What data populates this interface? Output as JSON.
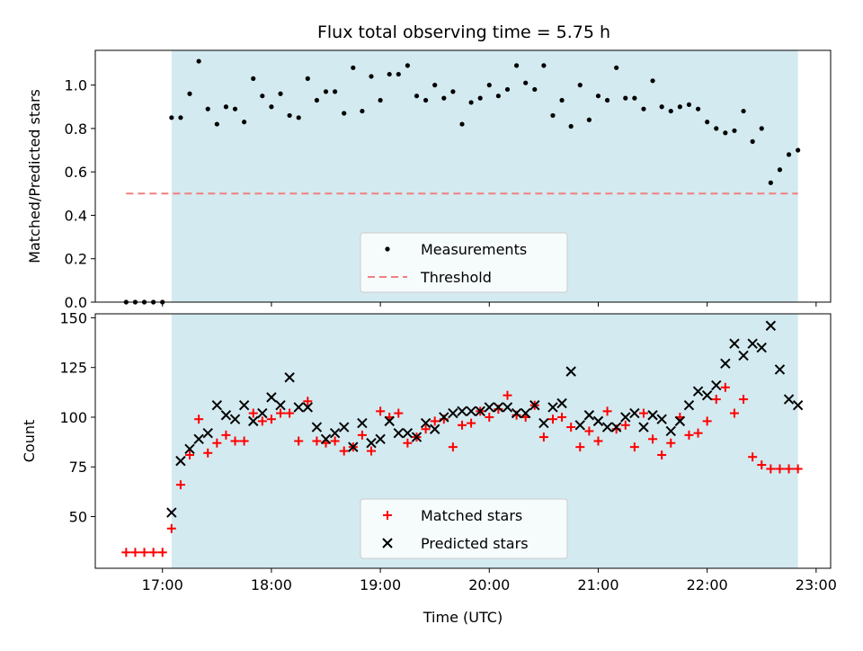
{
  "title": "Flux total observing time = 5.75 h",
  "chart_data": [
    {
      "type": "scatter",
      "panel": "top",
      "ylabel": "Matched/Predicted stars",
      "xlabel": "",
      "ylim": [
        0,
        1.16
      ],
      "yticks": [
        "0.0",
        "0.2",
        "0.4",
        "0.6",
        "0.8",
        "1.0"
      ],
      "ytick_values": [
        0,
        0.2,
        0.4,
        0.6,
        0.8,
        1.0
      ],
      "xlim": [
        "16:23",
        "23:08"
      ],
      "xticks": [
        "17:00",
        "18:00",
        "19:00",
        "20:00",
        "21:00",
        "22:00",
        "23:00"
      ],
      "observing_window": {
        "start": "17:05",
        "end": "22:50",
        "color": "#d3eaf0"
      },
      "threshold": {
        "name": "Threshold",
        "value": 0.5,
        "x_start": "16:40",
        "x_end": "22:50",
        "color": "#f08080",
        "style": "dashed"
      },
      "legend": {
        "placement": "lower center",
        "entries": [
          "Measurements",
          "Threshold"
        ]
      },
      "series": [
        {
          "name": "Measurements",
          "color": "#000000",
          "marker": "dot",
          "x": [
            "16:40",
            "16:45",
            "16:50",
            "16:55",
            "17:00",
            "17:05",
            "17:10",
            "17:15",
            "17:20",
            "17:25",
            "17:30",
            "17:35",
            "17:40",
            "17:45",
            "17:50",
            "17:55",
            "18:00",
            "18:05",
            "18:10",
            "18:15",
            "18:20",
            "18:25",
            "18:30",
            "18:35",
            "18:40",
            "18:45",
            "18:50",
            "18:55",
            "19:00",
            "19:05",
            "19:10",
            "19:15",
            "19:20",
            "19:25",
            "19:30",
            "19:35",
            "19:40",
            "19:45",
            "19:50",
            "19:55",
            "20:00",
            "20:05",
            "20:10",
            "20:15",
            "20:20",
            "20:25",
            "20:30",
            "20:35",
            "20:40",
            "20:45",
            "20:50",
            "20:55",
            "21:00",
            "21:05",
            "21:10",
            "21:15",
            "21:20",
            "21:25",
            "21:30",
            "21:35",
            "21:40",
            "21:45",
            "21:50",
            "21:55",
            "22:00",
            "22:05",
            "22:10",
            "22:15",
            "22:20",
            "22:25",
            "22:30",
            "22:35",
            "22:40",
            "22:45",
            "22:50"
          ],
          "y": [
            0,
            0,
            0,
            0,
            0,
            0.85,
            0.85,
            0.96,
            1.11,
            0.89,
            0.82,
            0.9,
            0.89,
            0.83,
            1.03,
            0.95,
            0.9,
            0.96,
            0.86,
            0.85,
            1.03,
            0.93,
            0.97,
            0.97,
            0.87,
            1.08,
            0.88,
            1.04,
            0.93,
            1.05,
            1.05,
            1.09,
            0.95,
            0.93,
            1.0,
            0.94,
            0.97,
            0.82,
            0.92,
            0.94,
            1.0,
            0.95,
            0.98,
            1.09,
            1.01,
            0.98,
            1.09,
            0.86,
            0.93,
            0.81,
            1.0,
            0.84,
            0.95,
            0.93,
            1.08,
            0.94,
            0.94,
            0.89,
            1.02,
            0.9,
            0.88,
            0.9,
            0.91,
            0.89,
            0.83,
            0.8,
            0.78,
            0.79,
            0.88,
            0.74,
            0.8,
            0.55,
            0.61,
            0.68,
            0.7
          ]
        }
      ]
    },
    {
      "type": "scatter",
      "panel": "bottom",
      "ylabel": "Count",
      "xlabel": "Time (UTC)",
      "ylim": [
        24,
        152
      ],
      "yticks": [
        "50",
        "75",
        "100",
        "125",
        "150"
      ],
      "ytick_values": [
        50,
        75,
        100,
        125,
        150
      ],
      "xlim": [
        "16:23",
        "23:08"
      ],
      "xticks": [
        "17:00",
        "18:00",
        "19:00",
        "20:00",
        "21:00",
        "22:00",
        "23:00"
      ],
      "observing_window": {
        "start": "17:05",
        "end": "22:50",
        "color": "#d3eaf0"
      },
      "legend": {
        "placement": "lower center",
        "entries": [
          "Matched stars",
          "Predicted stars"
        ]
      },
      "series": [
        {
          "name": "Matched stars",
          "color": "#ff0000",
          "marker": "plus",
          "x": [
            "16:40",
            "16:45",
            "16:50",
            "16:55",
            "17:00",
            "17:05",
            "17:10",
            "17:15",
            "17:20",
            "17:25",
            "17:30",
            "17:35",
            "17:40",
            "17:45",
            "17:50",
            "17:55",
            "18:00",
            "18:05",
            "18:10",
            "18:15",
            "18:20",
            "18:25",
            "18:30",
            "18:35",
            "18:40",
            "18:45",
            "18:50",
            "18:55",
            "19:00",
            "19:05",
            "19:10",
            "19:15",
            "19:20",
            "19:25",
            "19:30",
            "19:35",
            "19:40",
            "19:45",
            "19:50",
            "19:55",
            "20:00",
            "20:05",
            "20:10",
            "20:15",
            "20:20",
            "20:25",
            "20:30",
            "20:35",
            "20:40",
            "20:45",
            "20:50",
            "20:55",
            "21:00",
            "21:05",
            "21:10",
            "21:15",
            "21:20",
            "21:25",
            "21:30",
            "21:35",
            "21:40",
            "21:45",
            "21:50",
            "21:55",
            "22:00",
            "22:05",
            "22:10",
            "22:15",
            "22:20",
            "22:25",
            "22:30",
            "22:35",
            "22:40",
            "22:45",
            "22:50"
          ],
          "y": [
            32,
            32,
            32,
            32,
            32,
            44,
            66,
            81,
            99,
            82,
            87,
            91,
            88,
            88,
            102,
            98,
            99,
            102,
            102,
            88,
            108,
            88,
            87,
            88,
            83,
            85,
            91,
            83,
            103,
            100,
            102,
            87,
            90,
            94,
            98,
            99,
            85,
            96,
            97,
            103,
            100,
            104,
            111,
            101,
            100,
            106,
            90,
            99,
            100,
            95,
            85,
            93,
            88,
            103,
            94,
            96,
            85,
            102,
            89,
            81,
            87,
            100,
            91,
            92,
            98,
            109,
            115,
            102,
            109,
            80,
            76,
            74,
            74,
            74,
            74
          ]
        },
        {
          "name": "Predicted stars",
          "color": "#000000",
          "marker": "x",
          "x": [
            "17:05",
            "17:10",
            "17:15",
            "17:20",
            "17:25",
            "17:30",
            "17:35",
            "17:40",
            "17:45",
            "17:50",
            "17:55",
            "18:00",
            "18:05",
            "18:10",
            "18:15",
            "18:20",
            "18:25",
            "18:30",
            "18:35",
            "18:40",
            "18:45",
            "18:50",
            "18:55",
            "19:00",
            "19:05",
            "19:10",
            "19:15",
            "19:20",
            "19:25",
            "19:30",
            "19:35",
            "19:40",
            "19:45",
            "19:50",
            "19:55",
            "20:00",
            "20:05",
            "20:10",
            "20:15",
            "20:20",
            "20:25",
            "20:30",
            "20:35",
            "20:40",
            "20:45",
            "20:50",
            "20:55",
            "21:00",
            "21:05",
            "21:10",
            "21:15",
            "21:20",
            "21:25",
            "21:30",
            "21:35",
            "21:40",
            "21:45",
            "21:50",
            "21:55",
            "22:00",
            "22:05",
            "22:10",
            "22:15",
            "22:20",
            "22:25",
            "22:30",
            "22:35",
            "22:40",
            "22:45",
            "22:50"
          ],
          "y": [
            52,
            78,
            84,
            89,
            92,
            106,
            101,
            99,
            106,
            98,
            102,
            110,
            106,
            120,
            105,
            105,
            95,
            89,
            92,
            95,
            85,
            97,
            87,
            89,
            98,
            92,
            92,
            90,
            97,
            94,
            100,
            102,
            103,
            103,
            103,
            105,
            105,
            105,
            102,
            102,
            106,
            97,
            105,
            107,
            123,
            96,
            101,
            98,
            95,
            95,
            100,
            102,
            95,
            101,
            99,
            93,
            98,
            106,
            113,
            111,
            116,
            127,
            137,
            131,
            137,
            135,
            146,
            124,
            109,
            106
          ]
        }
      ]
    }
  ]
}
